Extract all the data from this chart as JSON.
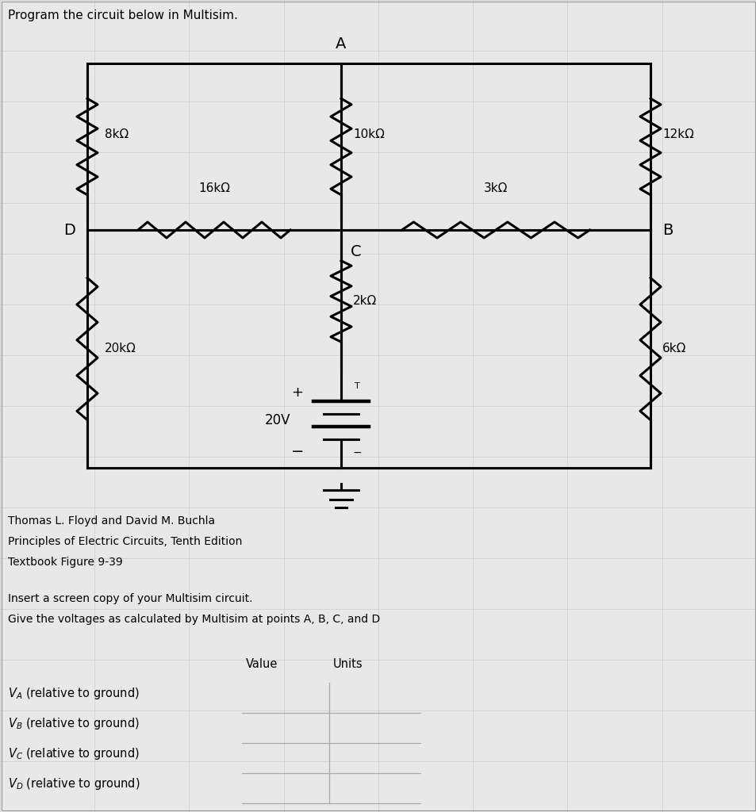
{
  "title": "Program the circuit below in Multisim.",
  "bg_color": "#e8e8e8",
  "line_color": "#000000",
  "grid_color": "#cccccc",
  "footer_lines": [
    "Thomas L. Floyd and David M. Buchla",
    "Principles of Electric Circuits, Tenth Edition",
    "Textbook Figure 9-39"
  ],
  "instructions": [
    "Insert a screen copy of your Multisim circuit.",
    "Give the voltages as calculated by Multisim at points A, B, C, and D"
  ],
  "table_headers": [
    "Value",
    "Units"
  ],
  "table_rows": [
    "V_A (relative to ground)",
    "V_B (relative to ground)",
    "V_C (relative to ground)",
    "V_D (relative to ground)"
  ],
  "R8k_label": "8kΩ",
  "R10k_label": "10kΩ",
  "R12k_label": "12kΩ",
  "R16k_label": "16kΩ",
  "R3k_label": "3kΩ",
  "R20k_label": "20kΩ",
  "R2k_label": "2kΩ",
  "R6k_label": "6kΩ",
  "battery_label": "20V",
  "node_A": "A",
  "node_B": "B",
  "node_C": "C",
  "node_D": "D",
  "plus_sign": "+",
  "minus_sign": "−",
  "T_sign": "T"
}
